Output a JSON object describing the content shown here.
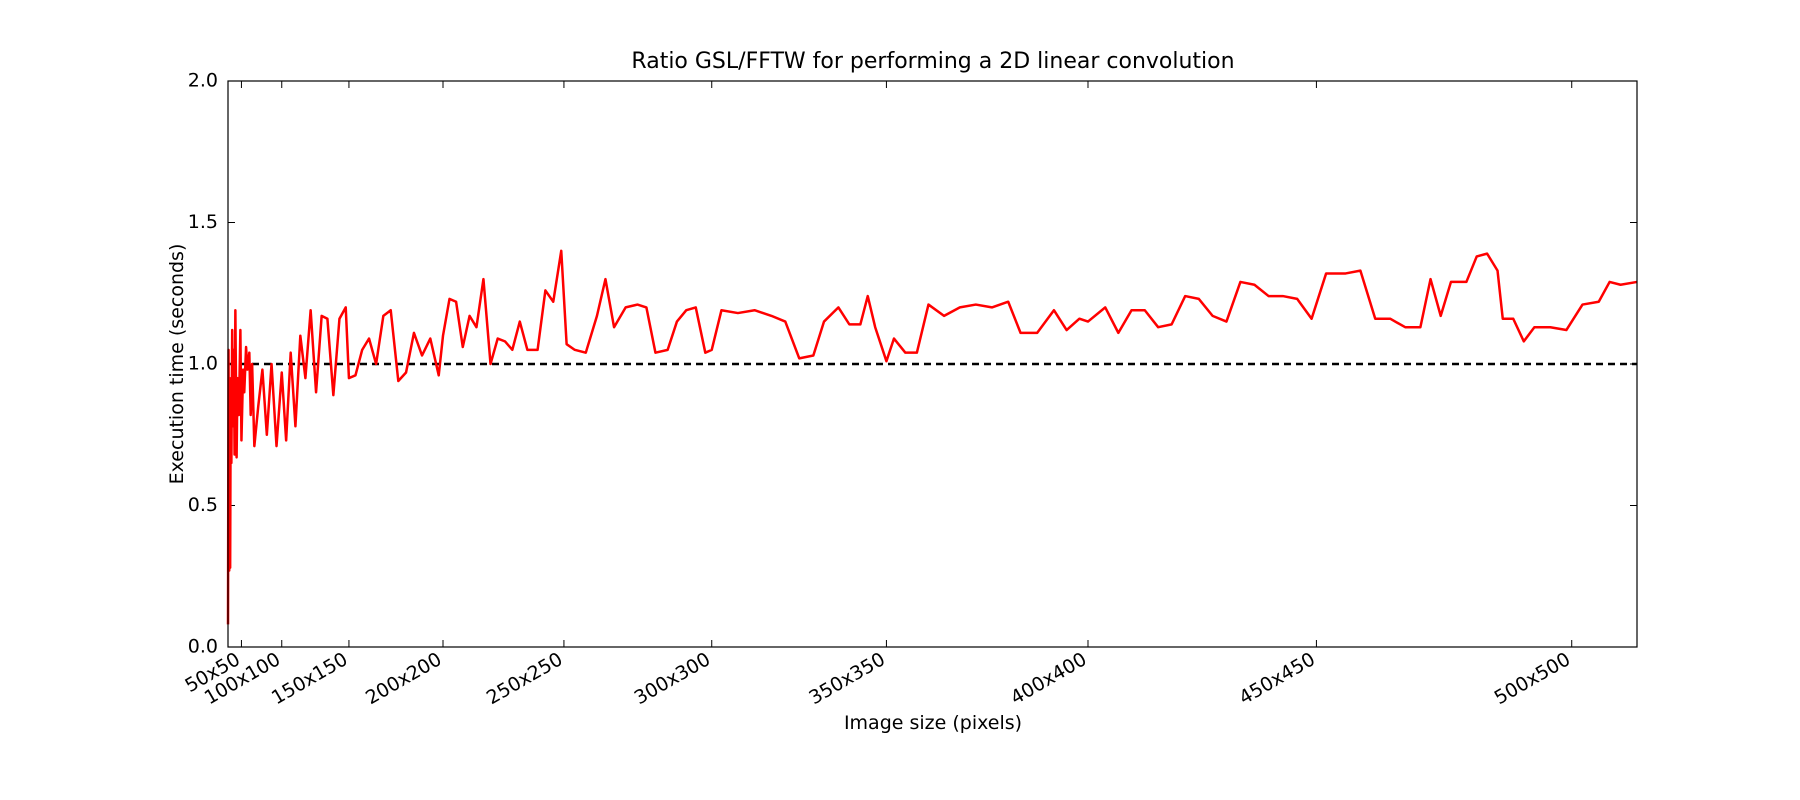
{
  "chart_data": {
    "type": "line",
    "title": "Ratio GSL/FFTW for performing a 2D linear convolution",
    "x_label": "Image size (pixels)",
    "y_label": "Execution time (seconds)",
    "color": "#ff0000",
    "x_scale": "square",
    "x": [
      1,
      10,
      15,
      18,
      20,
      22,
      25,
      28,
      30,
      33,
      35,
      37,
      40,
      42,
      45,
      48,
      50,
      53,
      55,
      58,
      60,
      63,
      65,
      67,
      70,
      75,
      80,
      85,
      90,
      95,
      100,
      104,
      108,
      112,
      116,
      120,
      124,
      128,
      132,
      136,
      140,
      144,
      148,
      150,
      154,
      158,
      162,
      166,
      170,
      174,
      178,
      182,
      186,
      190,
      194,
      198,
      200,
      203,
      206,
      209,
      212,
      215,
      218,
      221,
      224,
      227,
      230,
      233,
      236,
      240,
      243,
      246,
      249,
      251,
      254,
      258,
      262,
      265,
      268,
      272,
      276,
      279,
      282,
      286,
      289,
      292,
      295,
      298,
      300,
      303,
      308,
      313,
      318,
      322,
      326,
      330,
      333,
      337,
      340,
      343,
      345,
      347,
      350,
      352,
      355,
      358,
      361,
      365,
      369,
      373,
      377,
      381,
      384,
      388,
      392,
      395,
      398,
      400,
      404,
      407,
      410,
      413,
      416,
      419,
      422,
      425,
      428,
      431,
      434,
      437,
      440,
      443,
      446,
      449,
      452,
      456,
      459,
      462,
      465,
      468,
      471,
      473,
      475,
      477,
      480,
      482,
      484,
      486,
      487,
      489,
      491,
      493,
      496,
      499,
      502,
      505,
      507,
      509,
      512
    ],
    "values": [
      0.08,
      1.05,
      0.27,
      0.95,
      0.28,
      0.8,
      0.65,
      1.12,
      0.78,
      1.05,
      0.68,
      1.19,
      0.67,
      0.95,
      0.82,
      1.12,
      0.73,
      0.98,
      0.9,
      1.06,
      0.98,
      1.04,
      0.82,
      1.0,
      0.71,
      0.85,
      0.98,
      0.75,
      1.0,
      0.71,
      0.97,
      0.73,
      1.04,
      0.78,
      1.1,
      0.95,
      1.19,
      0.9,
      1.17,
      1.16,
      0.89,
      1.16,
      1.2,
      0.95,
      0.96,
      1.05,
      1.09,
      1.0,
      1.17,
      1.19,
      0.94,
      0.97,
      1.11,
      1.03,
      1.09,
      0.96,
      1.1,
      1.23,
      1.22,
      1.06,
      1.17,
      1.13,
      1.3,
      1.0,
      1.09,
      1.08,
      1.05,
      1.15,
      1.05,
      1.05,
      1.26,
      1.22,
      1.4,
      1.07,
      1.05,
      1.04,
      1.17,
      1.3,
      1.13,
      1.2,
      1.21,
      1.2,
      1.04,
      1.05,
      1.15,
      1.19,
      1.2,
      1.04,
      1.05,
      1.19,
      1.18,
      1.19,
      1.17,
      1.15,
      1.02,
      1.03,
      1.15,
      1.2,
      1.14,
      1.14,
      1.24,
      1.13,
      1.01,
      1.09,
      1.04,
      1.04,
      1.21,
      1.17,
      1.2,
      1.21,
      1.2,
      1.22,
      1.11,
      1.11,
      1.19,
      1.12,
      1.16,
      1.15,
      1.2,
      1.11,
      1.19,
      1.19,
      1.13,
      1.14,
      1.24,
      1.23,
      1.17,
      1.15,
      1.29,
      1.28,
      1.24,
      1.24,
      1.23,
      1.16,
      1.32,
      1.32,
      1.33,
      1.16,
      1.16,
      1.13,
      1.13,
      1.3,
      1.17,
      1.29,
      1.29,
      1.38,
      1.39,
      1.33,
      1.16,
      1.16,
      1.08,
      1.13,
      1.13,
      1.12,
      1.21,
      1.22,
      1.29,
      1.28,
      1.29
    ],
    "reference_line": {
      "value": 1,
      "color": "#000000",
      "style": "dashed"
    },
    "xlim": [
      0,
      512
    ],
    "xticks": [
      {
        "value": 50,
        "label": "50x50"
      },
      {
        "value": 100,
        "label": "100x100"
      },
      {
        "value": 150,
        "label": "150x150"
      },
      {
        "value": 200,
        "label": "200x200"
      },
      {
        "value": 250,
        "label": "250x250"
      },
      {
        "value": 300,
        "label": "300x300"
      },
      {
        "value": 350,
        "label": "350x350"
      },
      {
        "value": 400,
        "label": "400x400"
      },
      {
        "value": 450,
        "label": "450x450"
      },
      {
        "value": 500,
        "label": "500x500"
      }
    ],
    "ylim": [
      0,
      2
    ],
    "yticks": [
      {
        "value": 0,
        "label": "0.0"
      },
      0.5,
      {
        "value": 1,
        "label": "1.0"
      },
      1.5,
      {
        "value": 2,
        "label": "2.0"
      }
    ],
    "grid": false
  }
}
